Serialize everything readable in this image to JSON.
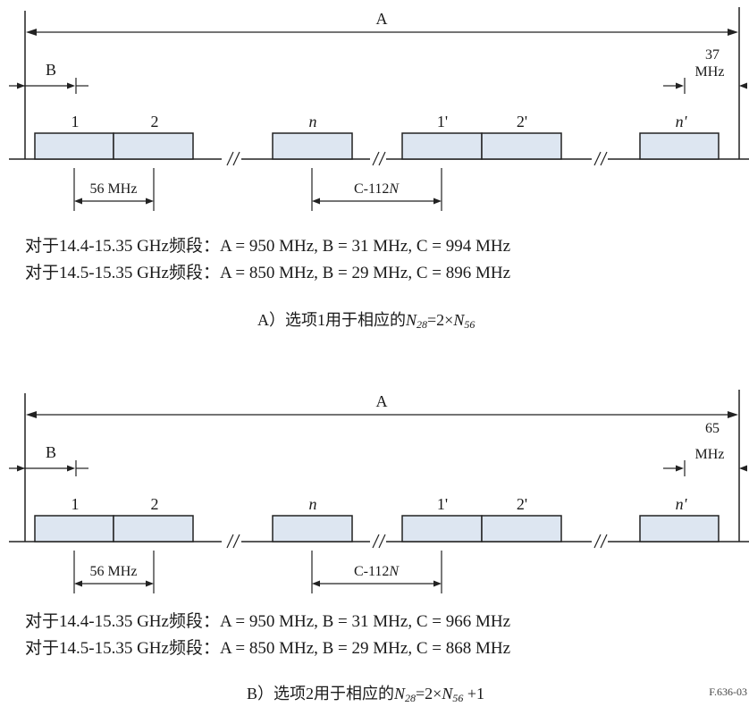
{
  "panels": [
    {
      "span_label": "A",
      "offset_label": "B",
      "guard_value": "37",
      "guard_unit": "MHz",
      "channels": {
        "c1": "1",
        "c2": "2",
        "cn": "n",
        "c1p": "1'",
        "c2p": "2'",
        "cnp": "n'"
      },
      "spacing_label": "56 MHz",
      "c_label_prefix": "C-112",
      "c_label_var": "N",
      "notes": [
        "对于14.4-15.35 GHz频段：A = 950 MHz, B = 31 MHz, C = 994 MHz",
        "对于14.5-15.35 GHz频段：A = 850 MHz, B = 29 MHz, C = 896 MHz"
      ],
      "caption": {
        "prefix": "A）选项1用于相应的",
        "n28": "N",
        "n28_sub": "28",
        "mid": "=2×",
        "n56": "N",
        "n56_sub": "56",
        "suffix": ""
      }
    },
    {
      "span_label": "A",
      "offset_label": "B",
      "guard_value": "65",
      "guard_unit": "MHz",
      "channels": {
        "c1": "1",
        "c2": "2",
        "cn": "n",
        "c1p": "1'",
        "c2p": "2'",
        "cnp": "n'"
      },
      "spacing_label": "56 MHz",
      "c_label_prefix": "C-112",
      "c_label_var": "N",
      "notes": [
        "对于14.4-15.35 GHz频段：A = 950 MHz, B = 31 MHz, C = 966 MHz",
        "对于14.5-15.35 GHz频段：A = 850 MHz, B = 29 MHz, C = 868 MHz"
      ],
      "caption": {
        "prefix": "B）选项2用于相应的",
        "n28": "N",
        "n28_sub": "28",
        "mid": "=2×",
        "n56": "N",
        "n56_sub": "56",
        "suffix": " +1"
      }
    }
  ],
  "figure_id": "F.636-03"
}
